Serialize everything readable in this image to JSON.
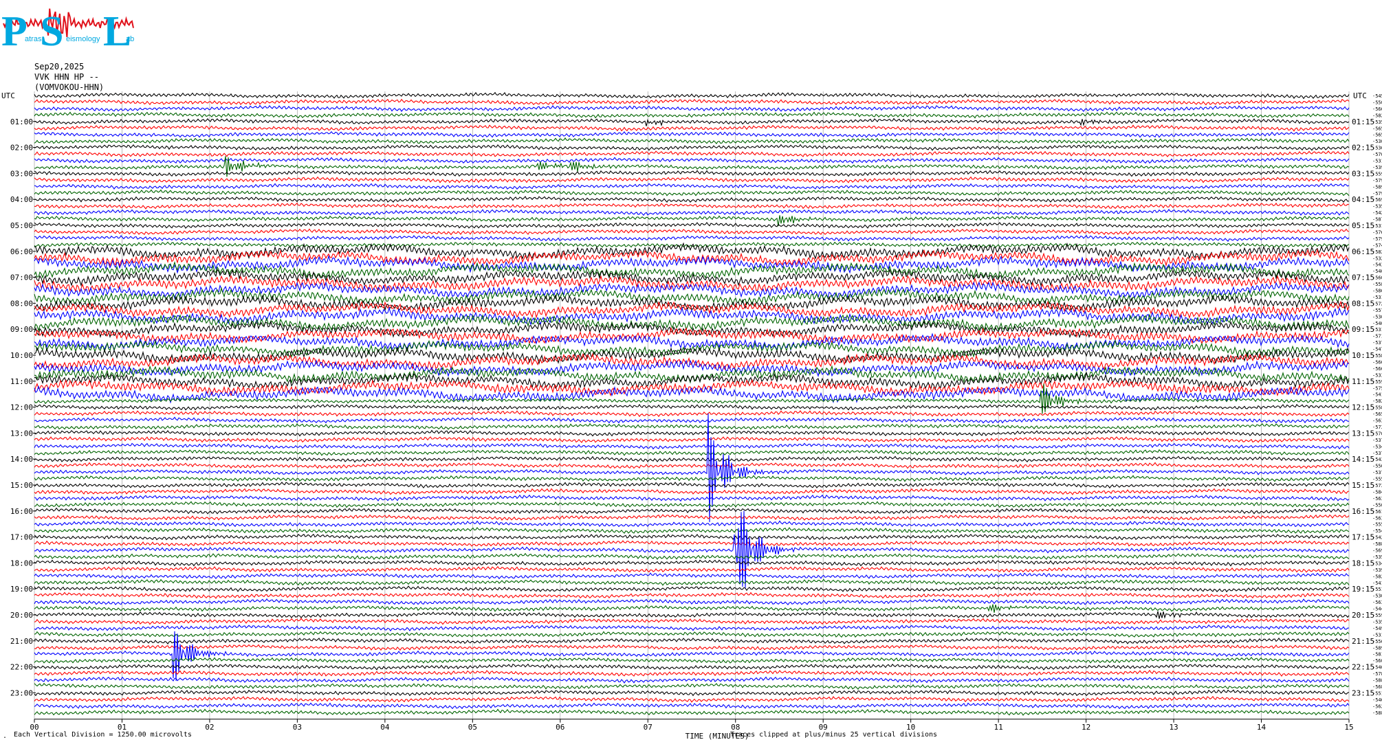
{
  "header": {
    "date": "Sep20,2025",
    "station": "VVK HHN HP --",
    "station_name": "(VOMVOKOU-HHN)"
  },
  "logo": {
    "letters": [
      "P",
      "S",
      "L"
    ],
    "small_words": [
      "atras",
      "eismology",
      "ab"
    ],
    "colors": {
      "letters": "#00a8e0",
      "trace": "#e0101a"
    }
  },
  "chart_data": {
    "type": "helicorder",
    "xlabel": "TIME (MINUTES)",
    "x_ticks": [
      "00",
      "01",
      "02",
      "03",
      "04",
      "05",
      "06",
      "07",
      "08",
      "09",
      "10",
      "11",
      "12",
      "13",
      "14",
      "15"
    ],
    "xlim": [
      0,
      15
    ],
    "utc_label": "UTC",
    "left_hour_labels": [
      "01:00",
      "02:00",
      "03:00",
      "04:00",
      "05:00",
      "06:00",
      "07:00",
      "08:00",
      "09:00",
      "10:00",
      "11:00",
      "12:00",
      "13:00",
      "14:00",
      "15:00",
      "16:00",
      "17:00",
      "18:00",
      "19:00",
      "20:00",
      "21:00",
      "22:00",
      "23:00"
    ],
    "right_hour_labels": [
      "01:15",
      "02:15",
      "03:15",
      "04:15",
      "05:15",
      "06:15",
      "07:15",
      "08:15",
      "09:15",
      "10:15",
      "11:15",
      "12:15",
      "13:15",
      "14:15",
      "15:15",
      "16:15",
      "17:15",
      "18:15",
      "19:15",
      "20:15",
      "21:15",
      "22:15",
      "23:15"
    ],
    "trace_count": 96,
    "trace_colors": [
      "#000000",
      "#ff0000",
      "#0000ff",
      "#006400"
    ],
    "vertical_grid": true,
    "events": [
      {
        "row": 11,
        "minute": 5.7,
        "amplitude": 12,
        "color": "#000000"
      },
      {
        "row": 11,
        "minute": 6.1,
        "amplitude": 12,
        "color": "#000000"
      },
      {
        "row": 11,
        "minute": 2.2,
        "amplitude": 18,
        "color": "#0000ff"
      },
      {
        "row": 19,
        "minute": 8.5,
        "amplitude": 12,
        "color": "#000000"
      },
      {
        "row": 4,
        "minute": 7.0,
        "amplitude": 6,
        "color": "#000000"
      },
      {
        "row": 4,
        "minute": 11.95,
        "amplitude": 7,
        "color": "#ff0000"
      },
      {
        "row": 47,
        "minute": 11.5,
        "amplitude": 30,
        "color": "#ff0000"
      },
      {
        "row": 58,
        "minute": 7.7,
        "amplitude": 95,
        "color": "#0000ff"
      },
      {
        "row": 70,
        "minute": 8.0,
        "amplitude": 110,
        "color": "#0000ff"
      },
      {
        "row": 86,
        "minute": 1.6,
        "amplitude": 45,
        "color": "#006400"
      },
      {
        "row": 80,
        "minute": 12.8,
        "amplitude": 8,
        "color": "#000000"
      },
      {
        "row": 79,
        "minute": 10.9,
        "amplitude": 8,
        "color": "#006400"
      }
    ],
    "noisy_rows": [
      24,
      46
    ],
    "footnote_left": "Each Vertical Division = 1250.00 microvolts",
    "footnote_right": "Traces clipped at plus/minus 25 vertical divisions"
  }
}
